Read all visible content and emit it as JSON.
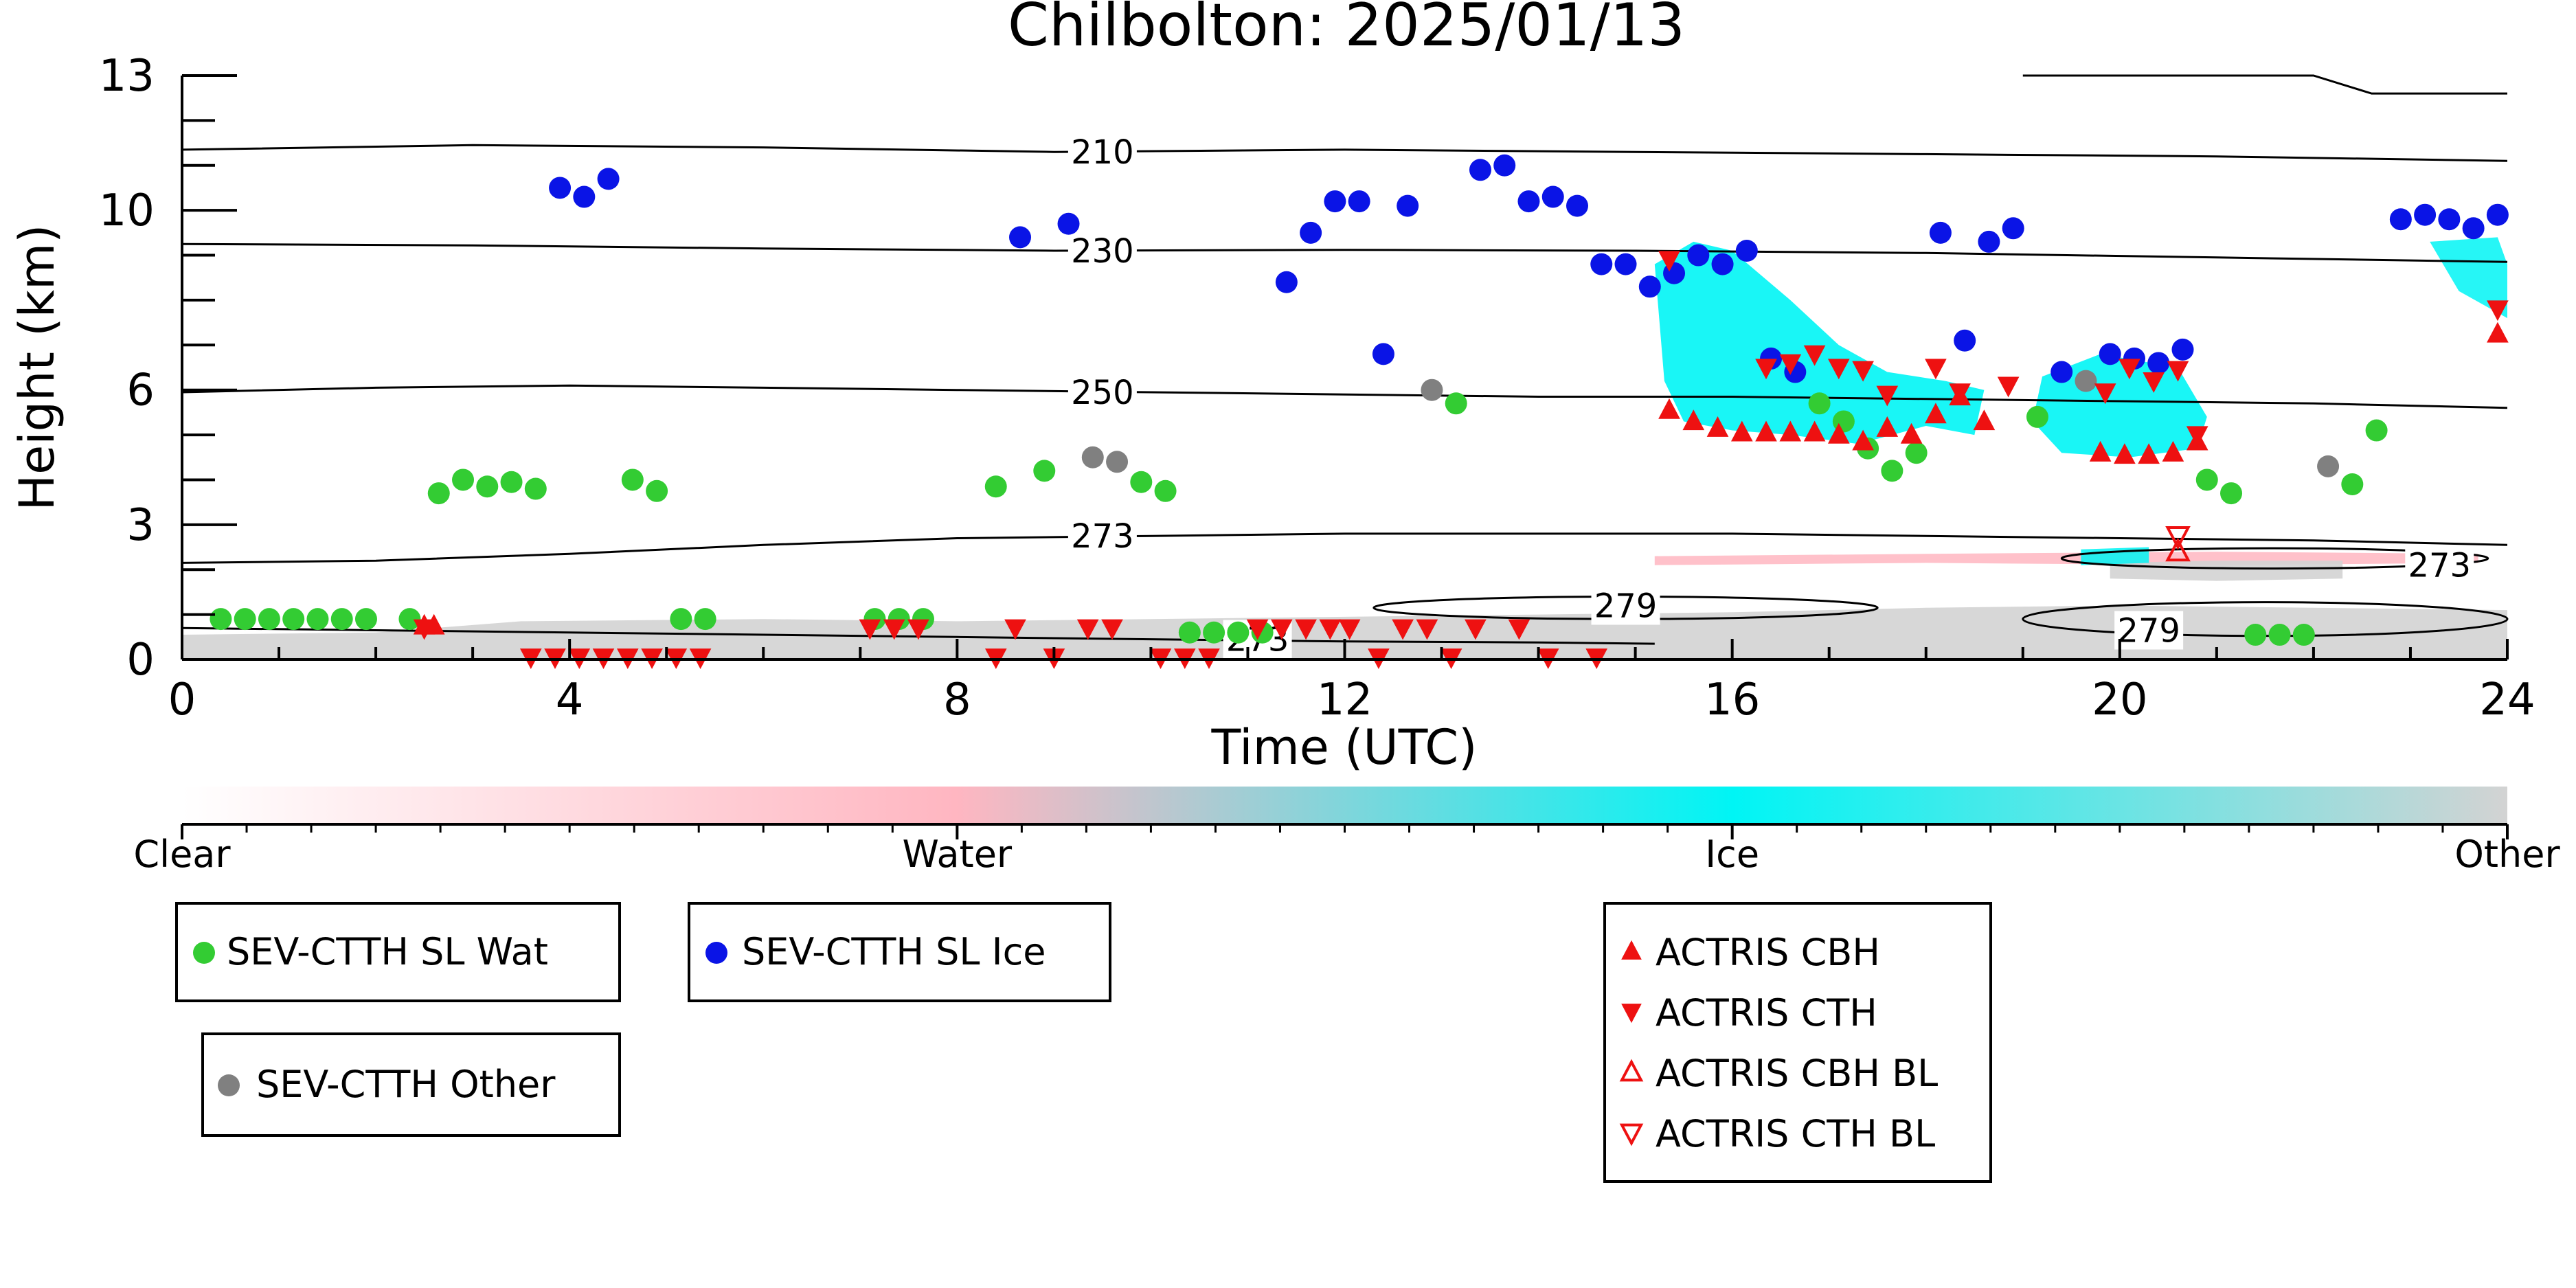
{
  "chart_data": {
    "type": "scatter",
    "title": "Chilbolton: 2025/01/13",
    "xlabel": "Time (UTC)",
    "ylabel": "Height (km)",
    "xlim": [
      0,
      24
    ],
    "ylim": [
      0,
      13
    ],
    "xticks": [
      0,
      4,
      8,
      12,
      16,
      20,
      24
    ],
    "yticks": [
      0,
      3,
      6,
      10,
      13
    ],
    "grid": false,
    "colorbar": {
      "labels": [
        "Clear",
        "Water",
        "Ice",
        "Other"
      ],
      "colors": [
        "#ffffff",
        "#ffb6c1",
        "#00f5f5",
        "#d3d3d3"
      ]
    },
    "temperature_contours": [
      {
        "label": "210",
        "x": [
          0,
          3,
          6,
          9,
          12,
          15,
          18,
          21,
          24
        ],
        "y": [
          11.35,
          11.45,
          11.4,
          11.3,
          11.35,
          11.3,
          11.25,
          11.2,
          11.1
        ]
      },
      {
        "label": "230",
        "x": [
          0,
          3,
          6,
          9,
          12,
          15,
          18,
          21,
          24
        ],
        "y": [
          9.25,
          9.22,
          9.15,
          9.1,
          9.12,
          9.1,
          9.05,
          8.95,
          8.85
        ]
      },
      {
        "label": "250",
        "x": [
          0,
          2,
          4,
          6,
          8,
          10,
          12,
          14,
          16,
          18,
          20,
          22,
          24
        ],
        "y": [
          5.95,
          6.05,
          6.1,
          6.05,
          6.0,
          5.95,
          5.9,
          5.85,
          5.85,
          5.8,
          5.75,
          5.7,
          5.6
        ]
      },
      {
        "label": "273",
        "x": [
          0,
          2,
          4,
          6,
          8,
          10,
          12,
          14,
          16,
          18,
          20,
          22,
          24
        ],
        "y": [
          2.15,
          2.2,
          2.35,
          2.55,
          2.7,
          2.75,
          2.8,
          2.8,
          2.8,
          2.75,
          2.7,
          2.65,
          2.55
        ]
      },
      {
        "label": "273",
        "x": [
          0,
          2,
          4,
          6,
          8,
          10,
          12,
          14,
          15.2
        ],
        "y": [
          0.7,
          0.65,
          0.6,
          0.55,
          0.5,
          0.45,
          0.4,
          0.38,
          0.35
        ]
      }
    ],
    "contour_labels": [
      {
        "text": "210",
        "x": 9.5,
        "y": 11.3
      },
      {
        "text": "230",
        "x": 9.5,
        "y": 9.1
      },
      {
        "text": "250",
        "x": 9.5,
        "y": 5.95
      },
      {
        "text": "273",
        "x": 9.5,
        "y": 2.75
      },
      {
        "text": "279",
        "x": 14.9,
        "y": 1.2
      },
      {
        "text": "273",
        "x": 11.1,
        "y": 0.45
      },
      {
        "text": "273",
        "x": 23.3,
        "y": 2.1
      },
      {
        "text": "279",
        "x": 20.3,
        "y": 0.65
      }
    ],
    "series": [
      {
        "name": "SEV-CTTH SL Wat",
        "color": "#33cc33",
        "marker": "circle",
        "x": [
          0.4,
          0.65,
          0.9,
          1.15,
          1.4,
          1.65,
          1.9,
          2.35,
          2.65,
          2.9,
          3.15,
          3.4,
          3.65,
          4.65,
          4.9,
          5.15,
          5.4,
          7.15,
          7.4,
          7.65,
          8.4,
          8.9,
          9.9,
          10.15,
          10.4,
          10.65,
          10.9,
          11.15,
          13.15,
          16.9,
          17.15,
          17.4,
          17.65,
          17.9,
          19.15,
          20.9,
          21.15,
          21.4,
          21.65,
          21.9,
          22.4,
          22.65
        ],
        "y": [
          0.9,
          0.9,
          0.9,
          0.9,
          0.9,
          0.9,
          0.9,
          0.9,
          3.7,
          4.0,
          3.85,
          3.95,
          3.8,
          4.0,
          3.75,
          0.9,
          0.9,
          0.9,
          0.9,
          0.9,
          3.85,
          4.2,
          3.95,
          3.75,
          0.6,
          0.6,
          0.6,
          0.6,
          5.7,
          5.7,
          5.3,
          4.7,
          4.2,
          4.6,
          5.4,
          4.0,
          3.7,
          0.55,
          0.55,
          0.55,
          3.9,
          5.1
        ]
      },
      {
        "name": "SEV-CTTH SL Ice",
        "color": "#0a14e6",
        "marker": "circle",
        "x": [
          3.9,
          4.15,
          4.4,
          8.65,
          9.15,
          11.4,
          11.65,
          11.9,
          12.15,
          12.4,
          12.65,
          13.4,
          13.65,
          13.9,
          14.15,
          14.4,
          14.65,
          14.9,
          15.15,
          15.4,
          15.65,
          15.9,
          16.15,
          16.4,
          16.65,
          18.15,
          18.4,
          18.65,
          18.9,
          19.4,
          19.9,
          20.15,
          20.4,
          20.65,
          22.9,
          23.15,
          23.4,
          23.65,
          23.9
        ],
        "y": [
          10.5,
          10.3,
          10.7,
          9.4,
          9.7,
          8.4,
          9.5,
          10.2,
          10.2,
          6.8,
          10.1,
          10.9,
          11.0,
          10.2,
          10.3,
          10.1,
          8.8,
          8.8,
          8.3,
          8.6,
          9.0,
          8.8,
          9.1,
          6.7,
          6.4,
          9.5,
          7.1,
          9.3,
          9.6,
          6.4,
          6.8,
          6.7,
          6.6,
          6.9,
          9.8,
          9.9,
          9.8,
          9.6,
          9.9
        ]
      },
      {
        "name": "SEV-CTTH Other",
        "color": "#808080",
        "marker": "circle",
        "x": [
          9.4,
          9.65,
          12.9,
          19.65,
          22.15
        ],
        "y": [
          4.5,
          4.4,
          6.0,
          6.2,
          4.3
        ]
      },
      {
        "name": "ACTRIS CBH",
        "color": "#ee1111",
        "marker": "triangle-up",
        "x": [
          2.5,
          2.6,
          15.35,
          15.6,
          15.85,
          16.1,
          16.35,
          16.6,
          16.85,
          17.1,
          17.35,
          17.6,
          17.85,
          18.1,
          18.35,
          18.6,
          19.8,
          20.05,
          20.3,
          20.55,
          20.8,
          23.9
        ],
        "y": [
          0.75,
          0.75,
          5.55,
          5.3,
          5.15,
          5.05,
          5.05,
          5.05,
          5.05,
          5.0,
          4.85,
          5.15,
          5.0,
          5.45,
          5.85,
          5.3,
          4.6,
          4.55,
          4.55,
          4.6,
          4.85,
          7.25
        ]
      },
      {
        "name": "ACTRIS CTH",
        "color": "#ee1111",
        "marker": "triangle-down",
        "x": [
          2.5,
          3.6,
          3.85,
          4.1,
          4.35,
          4.6,
          4.85,
          5.1,
          5.35,
          7.1,
          7.35,
          7.6,
          8.4,
          8.6,
          9.0,
          9.35,
          9.6,
          10.1,
          10.35,
          10.6,
          11.1,
          11.35,
          11.6,
          11.85,
          12.05,
          12.35,
          12.6,
          12.85,
          13.1,
          13.35,
          13.8,
          14.1,
          14.6,
          15.35,
          16.35,
          16.6,
          16.85,
          17.1,
          17.35,
          17.6,
          18.1,
          18.35,
          18.85,
          19.85,
          20.1,
          20.35,
          20.6,
          20.8,
          23.9
        ],
        "y": [
          0.7,
          0.05,
          0.05,
          0.05,
          0.05,
          0.05,
          0.05,
          0.05,
          0.05,
          0.7,
          0.7,
          0.7,
          0.05,
          0.7,
          0.05,
          0.7,
          0.7,
          0.05,
          0.05,
          0.05,
          0.7,
          0.7,
          0.7,
          0.7,
          0.7,
          0.05,
          0.7,
          0.7,
          0.05,
          0.7,
          0.7,
          0.05,
          0.05,
          8.9,
          6.5,
          6.6,
          6.8,
          6.5,
          6.45,
          5.9,
          6.5,
          5.95,
          6.1,
          5.95,
          6.5,
          6.2,
          6.45,
          5.0,
          7.8
        ]
      },
      {
        "name": "ACTRIS CBH BL",
        "color": "#ee1111",
        "marker": "triangle-up-open",
        "x": [
          20.6
        ],
        "y": [
          2.4
        ]
      },
      {
        "name": "ACTRIS CTH BL",
        "color": "#ee1111",
        "marker": "triangle-down-open",
        "x": [
          20.6
        ],
        "y": [
          2.75
        ]
      }
    ]
  }
}
